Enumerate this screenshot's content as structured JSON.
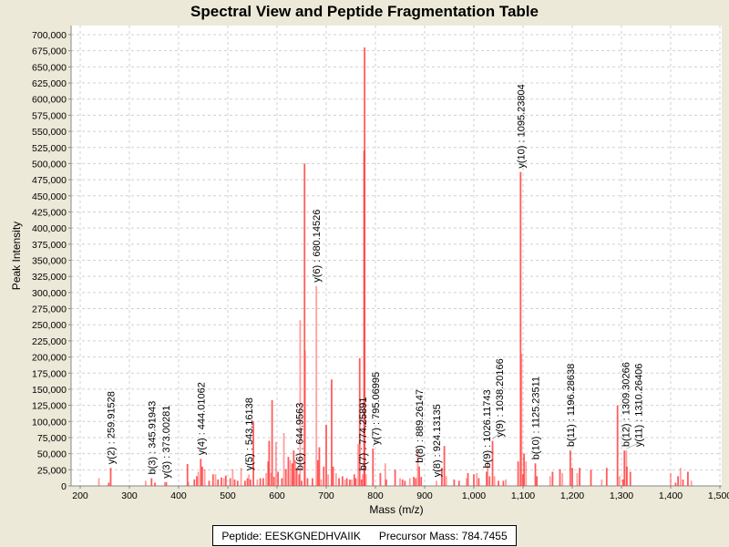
{
  "chart_data": {
    "type": "bar",
    "title": "Spectral View and Peptide Fragmentation Table",
    "xlabel": "Mass (m/z)",
    "ylabel": "Peak Intensity",
    "xlim": [
      180,
      1500
    ],
    "ylim": [
      0,
      700000
    ],
    "x_ticks": [
      200,
      300,
      400,
      500,
      600,
      700,
      800,
      900,
      1000,
      1100,
      1200,
      1300,
      1400,
      1500
    ],
    "y_tick_step": 25000,
    "grid": true,
    "peak_color": "#FF4040",
    "peaks": [
      [
        238,
        12000
      ],
      [
        258,
        5000
      ],
      [
        262,
        28000
      ],
      [
        333,
        8000
      ],
      [
        345,
        12000
      ],
      [
        352,
        5000
      ],
      [
        372,
        6000
      ],
      [
        375,
        6000
      ],
      [
        418,
        34000
      ],
      [
        420,
        6000
      ],
      [
        432,
        10000
      ],
      [
        437,
        15000
      ],
      [
        440,
        22000
      ],
      [
        445,
        42000
      ],
      [
        448,
        30000
      ],
      [
        453,
        26000
      ],
      [
        462,
        8000
      ],
      [
        470,
        18000
      ],
      [
        475,
        18000
      ],
      [
        480,
        10000
      ],
      [
        487,
        13000
      ],
      [
        492,
        12000
      ],
      [
        496,
        16000
      ],
      [
        505,
        12000
      ],
      [
        510,
        26000
      ],
      [
        514,
        10000
      ],
      [
        520,
        8000
      ],
      [
        527,
        28000
      ],
      [
        535,
        8000
      ],
      [
        540,
        12000
      ],
      [
        543,
        18000
      ],
      [
        546,
        10000
      ],
      [
        552,
        100000
      ],
      [
        560,
        10000
      ],
      [
        566,
        12000
      ],
      [
        572,
        12000
      ],
      [
        578,
        20000
      ],
      [
        582,
        38000
      ],
      [
        584,
        70000
      ],
      [
        588,
        20000
      ],
      [
        590,
        133000
      ],
      [
        594,
        14000
      ],
      [
        598,
        68000
      ],
      [
        602,
        22000
      ],
      [
        610,
        12000
      ],
      [
        614,
        82000
      ],
      [
        618,
        26000
      ],
      [
        623,
        45000
      ],
      [
        627,
        40000
      ],
      [
        631,
        35000
      ],
      [
        634,
        55000
      ],
      [
        637,
        40000
      ],
      [
        640,
        28000
      ],
      [
        645,
        18000
      ],
      [
        647,
        257000
      ],
      [
        650,
        8000
      ],
      [
        656,
        500000
      ],
      [
        657,
        210000
      ],
      [
        662,
        12000
      ],
      [
        672,
        12000
      ],
      [
        680,
        310000
      ],
      [
        683,
        40000
      ],
      [
        686,
        60000
      ],
      [
        690,
        10000
      ],
      [
        695,
        30000
      ],
      [
        700,
        95000
      ],
      [
        704,
        18000
      ],
      [
        711,
        165000
      ],
      [
        714,
        30000
      ],
      [
        720,
        20000
      ],
      [
        726,
        12000
      ],
      [
        733,
        15000
      ],
      [
        738,
        10000
      ],
      [
        742,
        12000
      ],
      [
        748,
        10000
      ],
      [
        752,
        10000
      ],
      [
        757,
        18000
      ],
      [
        760,
        12000
      ],
      [
        765,
        65000
      ],
      [
        768,
        198000
      ],
      [
        772,
        10000
      ],
      [
        774,
        18000
      ],
      [
        777,
        520000
      ],
      [
        778,
        680000
      ],
      [
        781,
        18000
      ],
      [
        795,
        58000
      ],
      [
        810,
        20000
      ],
      [
        820,
        35000
      ],
      [
        822,
        10000
      ],
      [
        840,
        25000
      ],
      [
        850,
        12000
      ],
      [
        855,
        10000
      ],
      [
        860,
        8000
      ],
      [
        870,
        12000
      ],
      [
        878,
        14000
      ],
      [
        882,
        12000
      ],
      [
        886,
        55000
      ],
      [
        889,
        30000
      ],
      [
        893,
        14000
      ],
      [
        924,
        8000
      ],
      [
        935,
        28000
      ],
      [
        940,
        62000
      ],
      [
        944,
        15000
      ],
      [
        960,
        10000
      ],
      [
        970,
        8000
      ],
      [
        985,
        12000
      ],
      [
        988,
        20000
      ],
      [
        1000,
        18000
      ],
      [
        1006,
        20000
      ],
      [
        1010,
        12000
      ],
      [
        1026,
        22000
      ],
      [
        1028,
        38000
      ],
      [
        1032,
        15000
      ],
      [
        1038,
        70000
      ],
      [
        1042,
        15000
      ],
      [
        1050,
        8000
      ],
      [
        1060,
        8000
      ],
      [
        1065,
        10000
      ],
      [
        1090,
        38000
      ],
      [
        1095,
        487000
      ],
      [
        1097,
        205000
      ],
      [
        1100,
        18000
      ],
      [
        1102,
        50000
      ],
      [
        1106,
        38000
      ],
      [
        1125,
        35000
      ],
      [
        1128,
        15000
      ],
      [
        1155,
        15000
      ],
      [
        1160,
        22000
      ],
      [
        1175,
        26000
      ],
      [
        1180,
        20000
      ],
      [
        1196,
        55000
      ],
      [
        1200,
        28000
      ],
      [
        1210,
        20000
      ],
      [
        1215,
        28000
      ],
      [
        1238,
        25000
      ],
      [
        1260,
        10000
      ],
      [
        1270,
        28000
      ],
      [
        1292,
        125000
      ],
      [
        1296,
        15000
      ],
      [
        1303,
        10000
      ],
      [
        1306,
        55000
      ],
      [
        1310,
        55000
      ],
      [
        1311,
        30000
      ],
      [
        1318,
        22000
      ],
      [
        1400,
        20000
      ],
      [
        1410,
        5000
      ],
      [
        1415,
        15000
      ],
      [
        1420,
        28000
      ],
      [
        1425,
        10000
      ],
      [
        1435,
        22000
      ],
      [
        1442,
        8000
      ]
    ],
    "annotations": [
      {
        "label": "y(2) : 259.91528",
        "mz": 262,
        "intensity": 28000
      },
      {
        "label": "b(3) : 345.91943",
        "mz": 345,
        "intensity": 12000
      },
      {
        "label": "y(3) : 373.00281",
        "mz": 374,
        "intensity": 6000
      },
      {
        "label": "y(4) : 444.01062",
        "mz": 445,
        "intensity": 42000
      },
      {
        "label": "y(5) : 543.16138",
        "mz": 543,
        "intensity": 18000
      },
      {
        "label": "b(6) : 644.9563",
        "mz": 645,
        "intensity": 18000
      },
      {
        "label": "y(6) : 680.14526",
        "mz": 680,
        "intensity": 310000
      },
      {
        "label": "b(7) : 774.25891",
        "mz": 774,
        "intensity": 18000
      },
      {
        "label": "y(7) : 795.06995",
        "mz": 795,
        "intensity": 58000
      },
      {
        "label": "b(8) : 889.26147",
        "mz": 889,
        "intensity": 30000
      },
      {
        "label": "y(8) : 924.13135",
        "mz": 924,
        "intensity": 8000
      },
      {
        "label": "b(9) : 1026.11743",
        "mz": 1026,
        "intensity": 22000
      },
      {
        "label": "y(9) : 1038.20166",
        "mz": 1038,
        "intensity": 70000
      },
      {
        "label": "y(10) : 1095.23804",
        "mz": 1095,
        "intensity": 487000
      },
      {
        "label": "b(10) : 1125.23511",
        "mz": 1125,
        "intensity": 35000
      },
      {
        "label": "b(11) : 1196.28638",
        "mz": 1196,
        "intensity": 55000
      },
      {
        "label": "b(12) : 1309.30266",
        "mz": 1308,
        "intensity": 55000
      },
      {
        "label": "y(11) : 1310.26406",
        "mz": 1310,
        "intensity": 55000
      }
    ]
  },
  "legend": {
    "peptide": "Peptide: EESKGNEDHVAIIK",
    "precursor": "Precursor Mass: 784.7455"
  }
}
